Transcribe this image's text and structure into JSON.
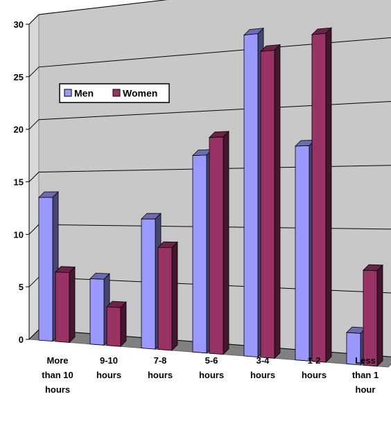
{
  "chart_data": {
    "type": "bar",
    "title": "",
    "xlabel": "",
    "ylabel": "",
    "ylim": [
      0,
      30
    ],
    "yticks": [
      0,
      5,
      10,
      15,
      20,
      25,
      30
    ],
    "grid": true,
    "legend_position": "top-left",
    "categories": [
      [
        "More",
        "than 10",
        "hours"
      ],
      [
        "9-10",
        "hours"
      ],
      [
        "7-8",
        "hours"
      ],
      [
        "5-6",
        "hours"
      ],
      [
        "3-4",
        "hours"
      ],
      [
        "1-2",
        "hours"
      ],
      [
        "Less",
        "than 1",
        "hour"
      ]
    ],
    "series": [
      {
        "name": "Men",
        "color": "#9999ff",
        "values": [
          13.5,
          6,
          11.5,
          17,
          27,
          17.5,
          2.5
        ]
      },
      {
        "name": "Women",
        "color": "#993366",
        "values": [
          6.5,
          3.5,
          9,
          18.5,
          25.5,
          26.5,
          7.5
        ]
      }
    ]
  }
}
